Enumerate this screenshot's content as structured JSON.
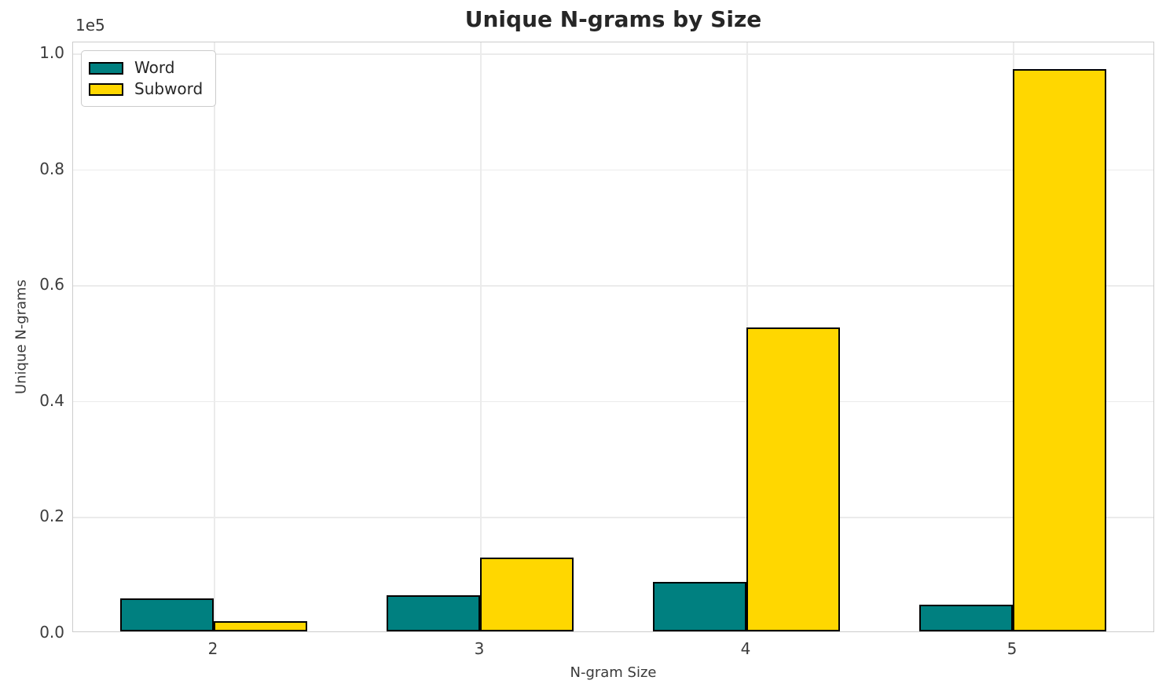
{
  "chart_data": {
    "type": "bar",
    "title": "Unique N-grams by Size",
    "xlabel": "N-gram Size",
    "ylabel": "Unique N-grams",
    "offset_text": "1e5",
    "categories": [
      "2",
      "3",
      "4",
      "5"
    ],
    "series": [
      {
        "name": "Word",
        "color": "#008080",
        "values": [
          5700,
          6300,
          8500,
          4600
        ]
      },
      {
        "name": "Subword",
        "color": "#FFD700",
        "values": [
          1800,
          12700,
          52500,
          97000
        ]
      }
    ],
    "ylim": [
      0,
      100000
    ],
    "y_ticks": [
      0,
      20000,
      40000,
      60000,
      80000,
      100000
    ],
    "y_tick_labels": [
      "0.0",
      "0.2",
      "0.4",
      "0.6",
      "0.8",
      "1.0"
    ],
    "bar_width_fraction": 0.35,
    "grid": true,
    "legend_position": "upper-left",
    "style": {
      "edge_color": "#000000",
      "grid_color": "#ebebeb",
      "spine_color": "#cccccc",
      "text_color": "#262626",
      "background": "#ffffff"
    }
  }
}
